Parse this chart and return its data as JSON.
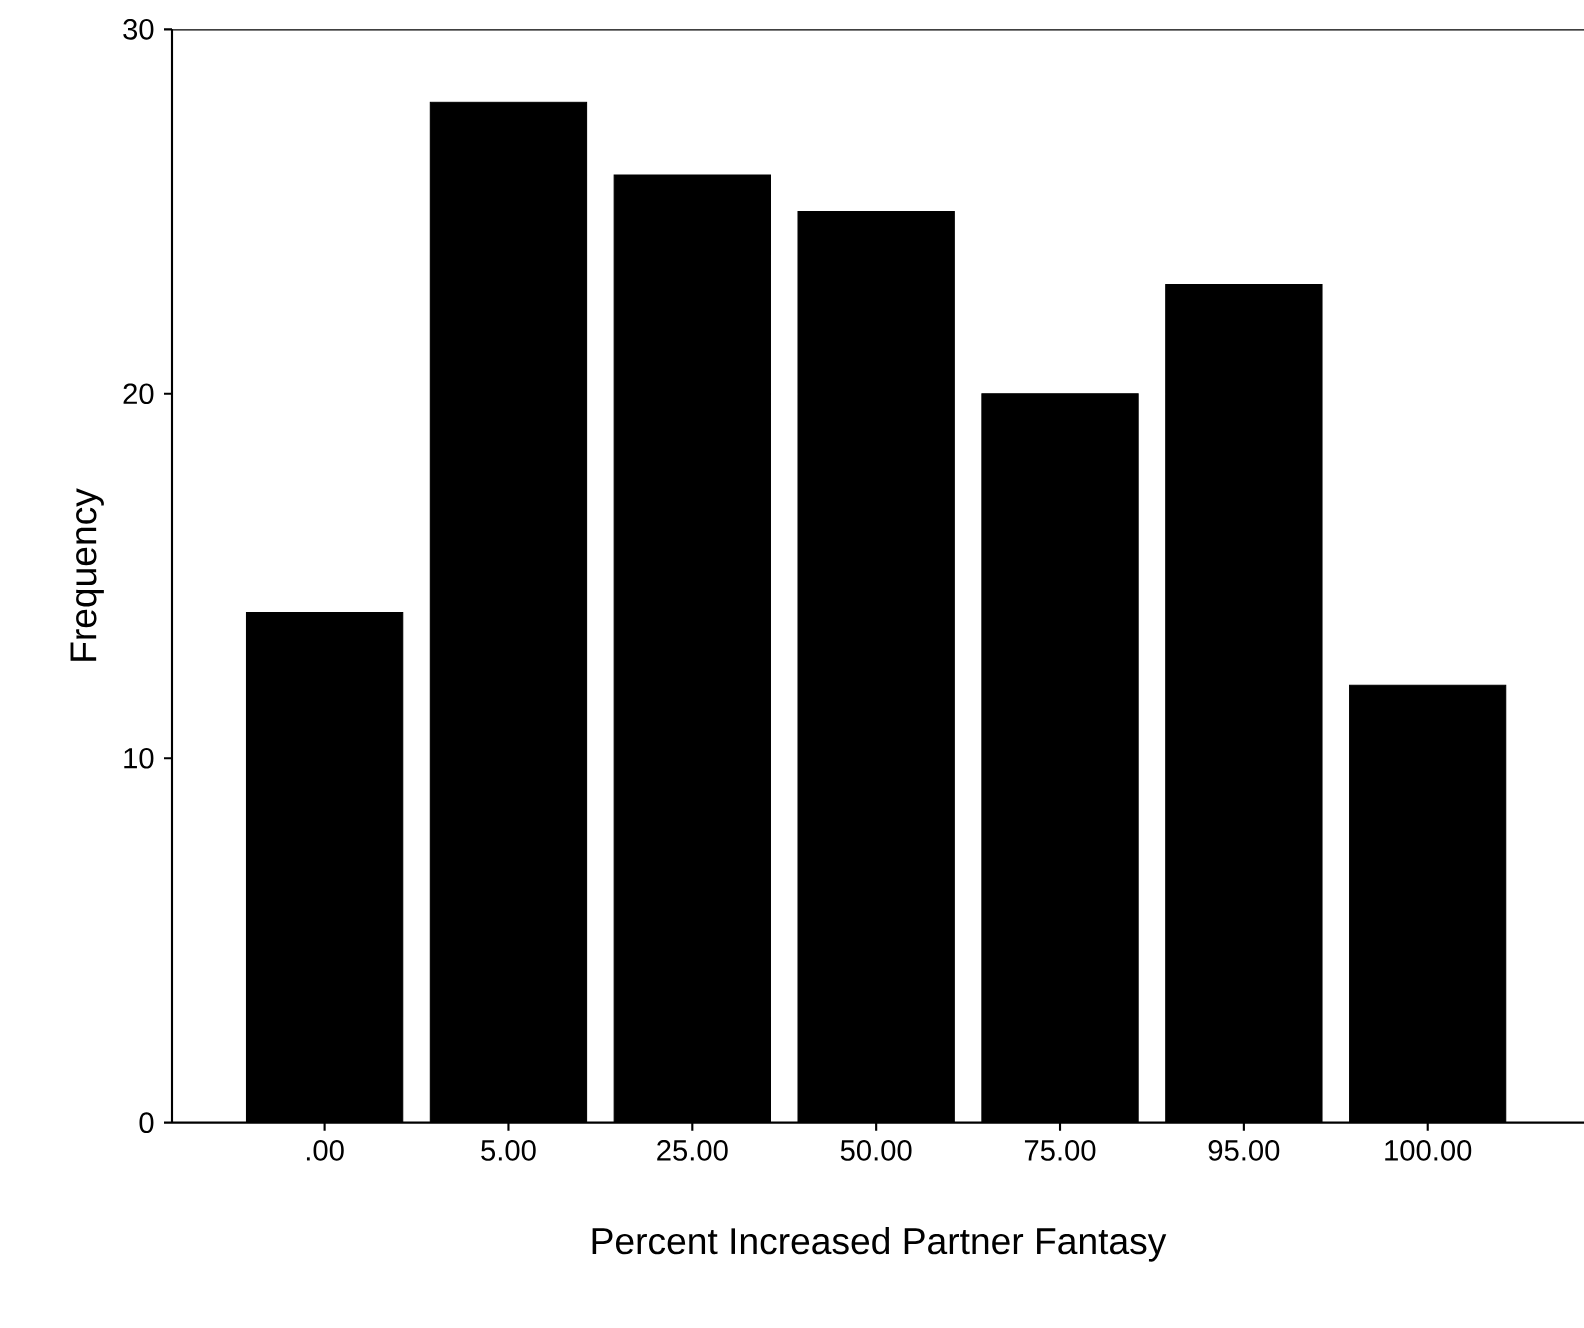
{
  "chart_data": {
    "type": "bar",
    "xlabel": "Percent Increased Partner Fantasy",
    "ylabel": "Frequency",
    "categories": [
      ".00",
      "5.00",
      "25.00",
      "50.00",
      "75.00",
      "95.00",
      "100.00"
    ],
    "values": [
      14,
      28,
      26,
      25,
      20,
      23,
      12
    ],
    "color": "#000000",
    "ylim": [
      0,
      30
    ],
    "yticks": [
      0,
      10,
      20,
      30
    ],
    "grid": false
  }
}
